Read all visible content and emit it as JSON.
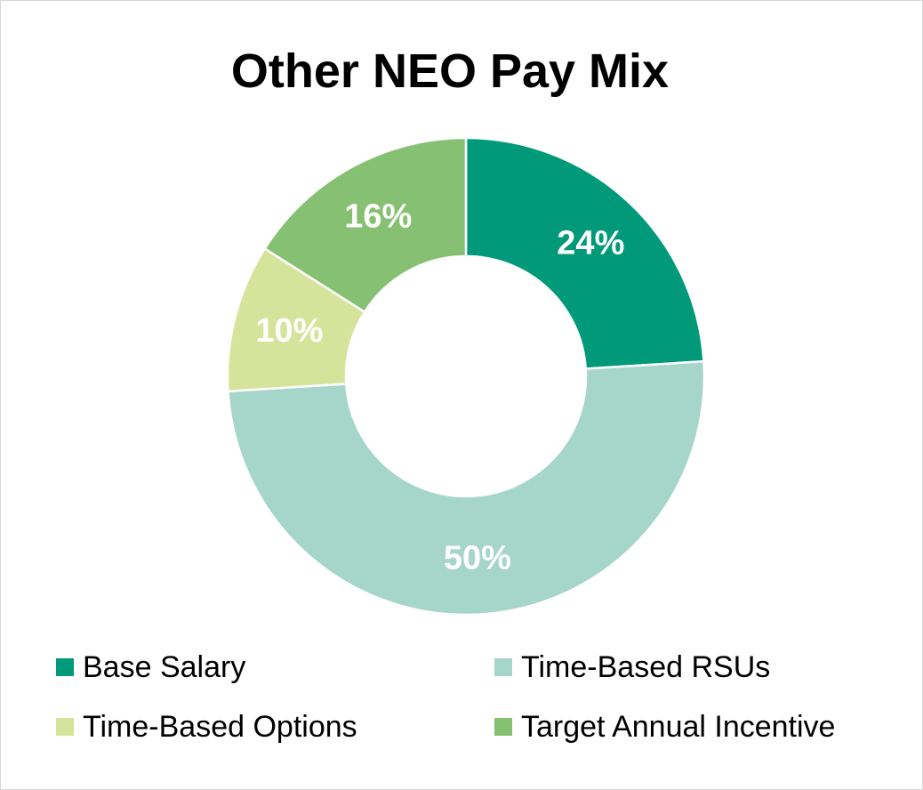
{
  "chart_data": {
    "type": "pie",
    "title": "Other NEO Pay Mix",
    "donut": true,
    "categories": [
      "Base Salary",
      "Time-Based RSUs",
      "Time-Based Options",
      "Target Annual Incentive"
    ],
    "values": [
      24,
      50,
      10,
      16
    ],
    "labels": [
      "24%",
      "50%",
      "10%",
      "16%"
    ],
    "colors": [
      "#009a7a",
      "#a6d5ca",
      "#d6e39a",
      "#86c072"
    ],
    "legend_position": "bottom"
  }
}
